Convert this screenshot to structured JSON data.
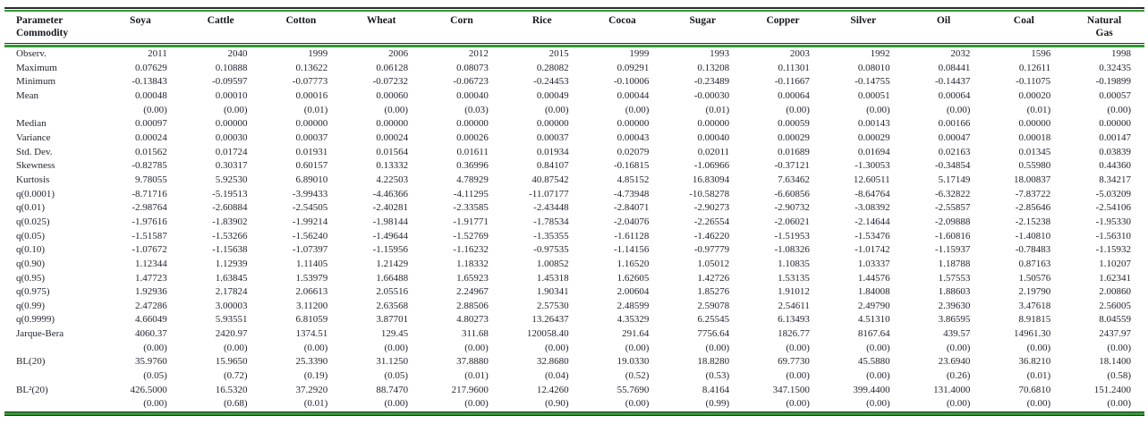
{
  "colors": {
    "rule_green": "#339a33",
    "rule_dark": "#2b2b2b",
    "text": "#232631",
    "header_text": "#15181f"
  },
  "table": {
    "corner": {
      "line1": "Parameter",
      "line2": "Commodity"
    },
    "columns": [
      "Soya",
      "Cattle",
      "Cotton",
      "Wheat",
      "Corn",
      "Rice",
      "Cocoa",
      "Sugar",
      "Copper",
      "Silver",
      "Oil",
      "Coal",
      "Natural Gas"
    ],
    "rows": [
      {
        "label": "Observ.",
        "values": [
          "2011",
          "2040",
          "1999",
          "2006",
          "2012",
          "2015",
          "1999",
          "1993",
          "2003",
          "1992",
          "2032",
          "1596",
          "1998"
        ]
      },
      {
        "label": "Maximum",
        "values": [
          "0.07629",
          "0.10888",
          "0.13622",
          "0.06128",
          "0.08073",
          "0.28082",
          "0.09291",
          "0.13208",
          "0.11301",
          "0.08010",
          "0.08441",
          "0.12611",
          "0.32435"
        ]
      },
      {
        "label": "Minimum",
        "values": [
          "-0.13843",
          "-0.09597",
          "-0.07773",
          "-0.07232",
          "-0.06723",
          "-0.24453",
          "-0.10006",
          "-0.23489",
          "-0.11667",
          "-0.14755",
          "-0.14437",
          "-0.11075",
          "-0.19899"
        ]
      },
      {
        "label": "Mean",
        "values": [
          "0.00048",
          "0.00010",
          "0.00016",
          "0.00060",
          "0.00040",
          "0.00049",
          "0.00044",
          "-0.00030",
          "0.00064",
          "0.00051",
          "0.00064",
          "0.00020",
          "0.00057"
        ]
      },
      {
        "label": "",
        "values": [
          "(0.00)",
          "(0.00)",
          "(0.01)",
          "(0.00)",
          "(0.03)",
          "(0.00)",
          "(0.00)",
          "(0.01)",
          "(0.00)",
          "(0.00)",
          "(0.00)",
          "(0.01)",
          "(0.00)"
        ]
      },
      {
        "label": "Median",
        "values": [
          "0.00097",
          "0.00000",
          "0.00000",
          "0.00000",
          "0.00000",
          "0.00000",
          "0.00000",
          "0.00000",
          "0.00059",
          "0.00143",
          "0.00166",
          "0.00000",
          "0.00000"
        ]
      },
      {
        "label": "Variance",
        "values": [
          "0.00024",
          "0.00030",
          "0.00037",
          "0.00024",
          "0.00026",
          "0.00037",
          "0.00043",
          "0.00040",
          "0.00029",
          "0.00029",
          "0.00047",
          "0.00018",
          "0.00147"
        ]
      },
      {
        "label": "Std. Dev.",
        "values": [
          "0.01562",
          "0.01724",
          "0.01931",
          "0.01564",
          "0.01611",
          "0.01934",
          "0.02079",
          "0.02011",
          "0.01689",
          "0.01694",
          "0.02163",
          "0.01345",
          "0.03839"
        ]
      },
      {
        "label": "Skewness",
        "values": [
          "-0.82785",
          "0.30317",
          "0.60157",
          "0.13332",
          "0.36996",
          "0.84107",
          "-0.16815",
          "-1.06966",
          "-0.37121",
          "-1.30053",
          "-0.34854",
          "0.55980",
          "0.44360"
        ]
      },
      {
        "label": "Kurtosis",
        "values": [
          "9.78055",
          "5.92530",
          "6.89010",
          "4.22503",
          "4.78929",
          "40.87542",
          "4.85152",
          "16.83094",
          "7.63462",
          "12.60511",
          "5.17149",
          "18.00837",
          "8.34217"
        ]
      },
      {
        "label": "q(0.0001)",
        "values": [
          "-8.71716",
          "-5.19513",
          "-3.99433",
          "-4.46366",
          "-4.11295",
          "-11.07177",
          "-4.73948",
          "-10.58278",
          "-6.60856",
          "-8.64764",
          "-6.32822",
          "-7.83722",
          "-5.03209"
        ]
      },
      {
        "label": "q(0.01)",
        "values": [
          "-2.98764",
          "-2.60884",
          "-2.54505",
          "-2.40281",
          "-2.33585",
          "-2.43448",
          "-2.84071",
          "-2.90273",
          "-2.90732",
          "-3.08392",
          "-2.55857",
          "-2.85646",
          "-2.54106"
        ]
      },
      {
        "label": "q(0.025)",
        "values": [
          "-1.97616",
          "-1.83902",
          "-1.99214",
          "-1.98144",
          "-1.91771",
          "-1.78534",
          "-2.04076",
          "-2.26554",
          "-2.06021",
          "-2.14644",
          "-2.09888",
          "-2.15238",
          "-1.95330"
        ]
      },
      {
        "label": "q(0.05)",
        "values": [
          "-1.51587",
          "-1.53266",
          "-1.56240",
          "-1.49644",
          "-1.52769",
          "-1.35355",
          "-1.61128",
          "-1.46220",
          "-1.51953",
          "-1.53476",
          "-1.60816",
          "-1.40810",
          "-1.56310"
        ]
      },
      {
        "label": "q(0.10)",
        "values": [
          "-1.07672",
          "-1.15638",
          "-1.07397",
          "-1.15956",
          "-1.16232",
          "-0.97535",
          "-1.14156",
          "-0.97779",
          "-1.08326",
          "-1.01742",
          "-1.15937",
          "-0.78483",
          "-1.15932"
        ]
      },
      {
        "label": "q(0.90)",
        "values": [
          "1.12344",
          "1.12939",
          "1.11405",
          "1.21429",
          "1.18332",
          "1.00852",
          "1.16520",
          "1.05012",
          "1.10835",
          "1.03337",
          "1.18788",
          "0.87163",
          "1.10207"
        ]
      },
      {
        "label": "q(0.95)",
        "values": [
          "1.47723",
          "1.63845",
          "1.53979",
          "1.66488",
          "1.65923",
          "1.45318",
          "1.62605",
          "1.42726",
          "1.53135",
          "1.44576",
          "1.57553",
          "1.50576",
          "1.62341"
        ]
      },
      {
        "label": "q(0.975)",
        "values": [
          "1.92936",
          "2.17824",
          "2.06613",
          "2.05516",
          "2.24967",
          "1.90341",
          "2.00604",
          "1.85276",
          "1.91012",
          "1.84008",
          "1.88603",
          "2.19790",
          "2.00860"
        ]
      },
      {
        "label": "q(0.99)",
        "values": [
          "2.47286",
          "3.00003",
          "3.11200",
          "2.63568",
          "2.88506",
          "2.57530",
          "2.48599",
          "2.59078",
          "2.54611",
          "2.49790",
          "2.39630",
          "3.47618",
          "2.56005"
        ]
      },
      {
        "label": "q(0.9999)",
        "values": [
          "4.66049",
          "5.93551",
          "6.81059",
          "3.87701",
          "4.80273",
          "13.26437",
          "4.35329",
          "6.25545",
          "6.13493",
          "4.51310",
          "3.86595",
          "8.91815",
          "8.04559"
        ]
      },
      {
        "label": "Jarque-Bera",
        "values": [
          "4060.37",
          "2420.97",
          "1374.51",
          "129.45",
          "311.68",
          "120058.40",
          "291.64",
          "7756.64",
          "1826.77",
          "8167.64",
          "439.57",
          "14961.30",
          "2437.97"
        ]
      },
      {
        "label": "",
        "values": [
          "(0.00)",
          "(0.00)",
          "(0.00)",
          "(0.00)",
          "(0.00)",
          "(0.00)",
          "(0.00)",
          "(0.00)",
          "(0.00)",
          "(0.00)",
          "(0.00)",
          "(0.00)",
          "(0.00)"
        ]
      },
      {
        "label": "BL(20)",
        "values": [
          "35.9760",
          "15.9650",
          "25.3390",
          "31.1250",
          "37.8880",
          "32.8680",
          "19.0330",
          "18.8280",
          "69.7730",
          "45.5880",
          "23.6940",
          "36.8210",
          "18.1400"
        ]
      },
      {
        "label": "",
        "values": [
          "(0.05)",
          "(0.72)",
          "(0.19)",
          "(0.05)",
          "(0.01)",
          "(0.04)",
          "(0.52)",
          "(0.53)",
          "(0.00)",
          "(0.00)",
          "(0.26)",
          "(0.01)",
          "(0.58)"
        ]
      },
      {
        "label": "BL²(20)",
        "values": [
          "426.5000",
          "16.5320",
          "37.2920",
          "88.7470",
          "217.9600",
          "12.4260",
          "55.7690",
          "8.4164",
          "347.1500",
          "399.4400",
          "131.4000",
          "70.6810",
          "151.2400"
        ]
      },
      {
        "label": "",
        "values": [
          "(0.00)",
          "(0.68)",
          "(0.01)",
          "(0.00)",
          "(0.00)",
          "(0.90)",
          "(0.00)",
          "(0.99)",
          "(0.00)",
          "(0.00)",
          "(0.00)",
          "(0.00)",
          "(0.00)"
        ]
      }
    ]
  }
}
